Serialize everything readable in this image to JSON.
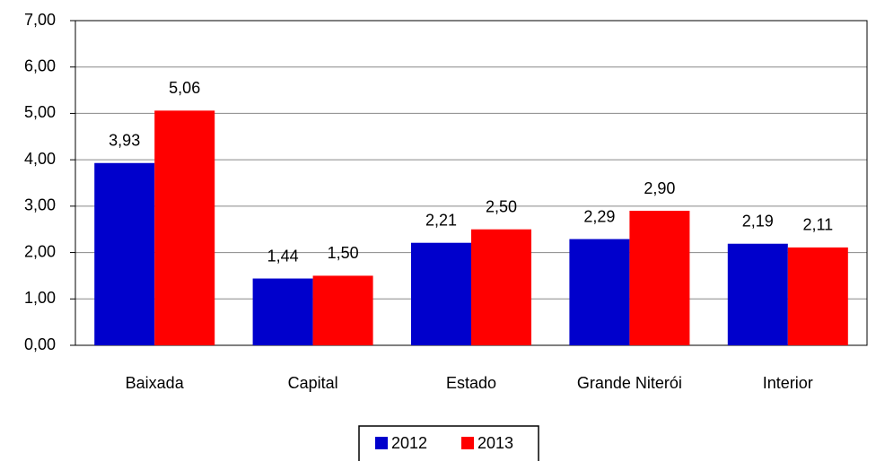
{
  "chart_data": {
    "type": "bar",
    "categories": [
      "Baixada",
      "Capital",
      "Estado",
      "Grande Niterói",
      "Interior"
    ],
    "series": [
      {
        "name": "2012",
        "color": "#0000cc",
        "values": [
          3.93,
          1.44,
          2.21,
          2.29,
          2.19
        ],
        "value_labels": [
          "3,93",
          "1,44",
          "2,21",
          "2,29",
          "2,19"
        ]
      },
      {
        "name": "2013",
        "color": "#ff0000",
        "values": [
          5.06,
          1.5,
          2.5,
          2.9,
          2.11
        ],
        "value_labels": [
          "5,06",
          "1,50",
          "2,50",
          "2,90",
          "2,11"
        ]
      }
    ],
    "ylim": [
      0,
      7
    ],
    "yticks": [
      {
        "value": 0,
        "label": "0,00"
      },
      {
        "value": 1,
        "label": "1,00"
      },
      {
        "value": 2,
        "label": "2,00"
      },
      {
        "value": 3,
        "label": "3,00"
      },
      {
        "value": 4,
        "label": "4,00"
      },
      {
        "value": 5,
        "label": "5,00"
      },
      {
        "value": 6,
        "label": "6,00"
      },
      {
        "value": 7,
        "label": "7,00"
      }
    ],
    "grid": true,
    "legend": "bottom"
  }
}
